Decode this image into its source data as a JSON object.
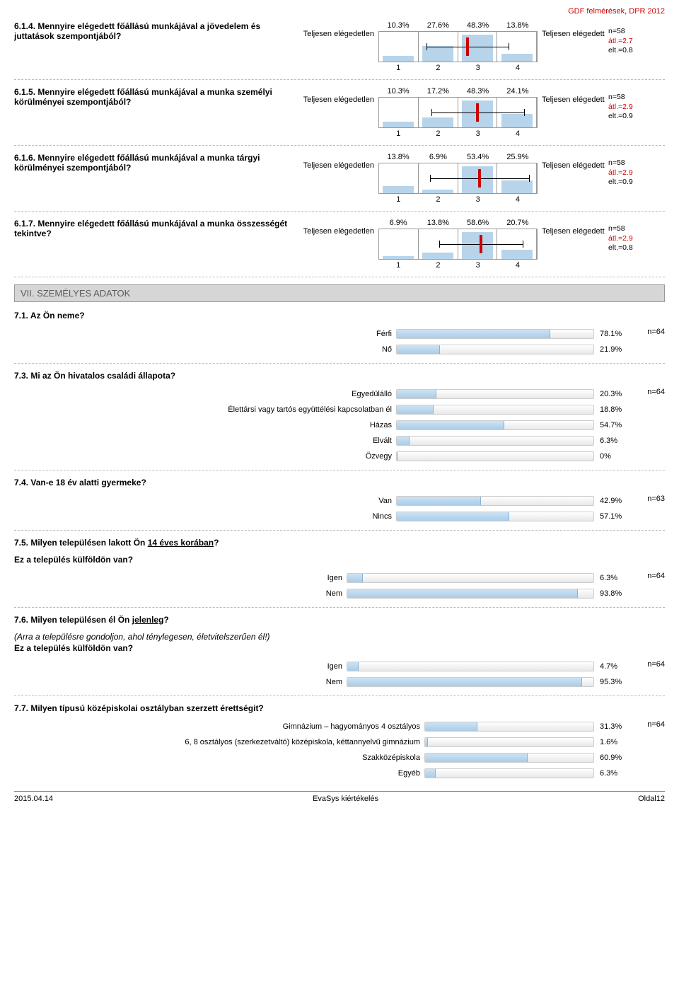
{
  "header": "GDF felmérések, DPR 2012",
  "colors": {
    "bar_fill": "#b7d4eb",
    "mean_marker": "#cc0000",
    "grid": "#999999",
    "hbar_light": "#cde3f3",
    "hbar_dark": "#a9cce8"
  },
  "likerts": [
    {
      "id": "q614",
      "question": "6.1.4. Mennyire elégedett főállású munkájával a jövedelem és juttatások szempontjából?",
      "left": "Teljesen elégedetlen",
      "right": "Teljesen elégedett",
      "values": [
        10.3,
        27.6,
        48.3,
        13.8
      ],
      "axis": [
        1,
        2,
        3,
        4
      ],
      "n": "n=58",
      "atl": "átl.=2.7",
      "elt": "elt.=0.8",
      "mean_pct": 56.0,
      "ci_lo": 30.0,
      "ci_hi": 82.0
    },
    {
      "id": "q615",
      "question": "6.1.5. Mennyire elégedett főállású munkájával a munka személyi körülményei szempontjából?",
      "left": "Teljesen elégedetlen",
      "right": "Teljesen elégedett",
      "values": [
        10.3,
        17.2,
        48.3,
        24.1
      ],
      "axis": [
        1,
        2,
        3,
        4
      ],
      "n": "n=58",
      "atl": "átl.=2.9",
      "elt": "elt.=0.9",
      "mean_pct": 62.5,
      "ci_lo": 33.0,
      "ci_hi": 92.0
    },
    {
      "id": "q616",
      "question": "6.1.6. Mennyire elégedett főállású munkájával a munka tárgyi körülményei szempontjából?",
      "left": "Teljesen elégedetlen",
      "right": "Teljesen elégedett",
      "values": [
        13.8,
        6.9,
        53.4,
        25.9
      ],
      "axis": [
        1,
        2,
        3,
        4
      ],
      "n": "n=58",
      "atl": "átl.=2.9",
      "elt": "elt.=0.9",
      "mean_pct": 63.8,
      "ci_lo": 32.5,
      "ci_hi": 95.0
    },
    {
      "id": "q617",
      "question": "6.1.7. Mennyire elégedett főállású munkájával a munka összességét tekintve?",
      "left": "Teljesen elégedetlen",
      "right": "Teljesen elégedett",
      "values": [
        6.9,
        13.8,
        58.6,
        20.7
      ],
      "axis": [
        1,
        2,
        3,
        4
      ],
      "n": "n=58",
      "atl": "átl.=2.9",
      "elt": "elt.=0.8",
      "mean_pct": 64.5,
      "ci_lo": 38.0,
      "ci_hi": 91.0
    }
  ],
  "section_title": "VII. SZEMÉLYES ADATOK",
  "hbar_questions": [
    {
      "id": "q71",
      "title": "7.1. Az Ön neme?",
      "n": "n=64",
      "label_width": 540,
      "track_width": 280,
      "rows": [
        {
          "label": "Férfi",
          "pct": 78.1,
          "text": "78.1%"
        },
        {
          "label": "Nő",
          "pct": 21.9,
          "text": "21.9%"
        }
      ]
    },
    {
      "id": "q73",
      "title": "7.3. Mi az Ön hivatalos családi állapota?",
      "n": "n=64",
      "label_width": 540,
      "track_width": 280,
      "rows": [
        {
          "label": "Egyedülálló",
          "pct": 20.3,
          "text": "20.3%"
        },
        {
          "label": "Élettársi vagy tartós együttélési kapcsolatban él",
          "pct": 18.8,
          "text": "18.8%"
        },
        {
          "label": "Házas",
          "pct": 54.7,
          "text": "54.7%"
        },
        {
          "label": "Elvált",
          "pct": 6.3,
          "text": "6.3%"
        },
        {
          "label": "Özvegy",
          "pct": 0,
          "text": "0%"
        }
      ]
    },
    {
      "id": "q74",
      "title": "7.4. Van-e 18 év alatti gyermeke?",
      "n": "n=63",
      "label_width": 540,
      "track_width": 280,
      "rows": [
        {
          "label": "Van",
          "pct": 42.9,
          "text": "42.9%"
        },
        {
          "label": "Nincs",
          "pct": 57.1,
          "text": "57.1%"
        }
      ]
    },
    {
      "id": "q75",
      "title": "7.5. Milyen településen lakott Ön 14 éves korában?",
      "subtitle": "Ez a település külföldön van?",
      "n": "n=64",
      "label_width": 470,
      "track_width": 350,
      "rows": [
        {
          "label": "Igen",
          "pct": 6.3,
          "text": "6.3%"
        },
        {
          "label": "Nem",
          "pct": 93.8,
          "text": "93.8%"
        }
      ]
    },
    {
      "id": "q76",
      "title": "7.6. Milyen településen él Ön jelenleg?",
      "italic_sub": "(Arra a településre gondoljon, ahol ténylegesen, életvitelszerűen él!)",
      "subtitle": "Ez a település külföldön van?",
      "n": "n=64",
      "label_width": 470,
      "track_width": 350,
      "rows": [
        {
          "label": "Igen",
          "pct": 4.7,
          "text": "4.7%"
        },
        {
          "label": "Nem",
          "pct": 95.3,
          "text": "95.3%"
        }
      ]
    },
    {
      "id": "q77",
      "title": "7.7. Milyen típusú középiskolai osztályban szerzett érettségit?",
      "n": "n=64",
      "label_width": 580,
      "track_width": 240,
      "rows": [
        {
          "label": "Gimnázium – hagyományos 4 osztályos",
          "pct": 31.3,
          "text": "31.3%"
        },
        {
          "label": "6, 8 osztályos (szerkezetváltó) középiskola, kéttannyelvű gimnázium",
          "pct": 1.6,
          "text": "1.6%"
        },
        {
          "label": "Szakközépiskola",
          "pct": 60.9,
          "text": "60.9%"
        },
        {
          "label": "Egyéb",
          "pct": 6.3,
          "text": "6.3%"
        }
      ]
    }
  ],
  "footer": {
    "left": "2015.04.14",
    "center": "EvaSys kiértékelés",
    "right": "Oldal12"
  }
}
